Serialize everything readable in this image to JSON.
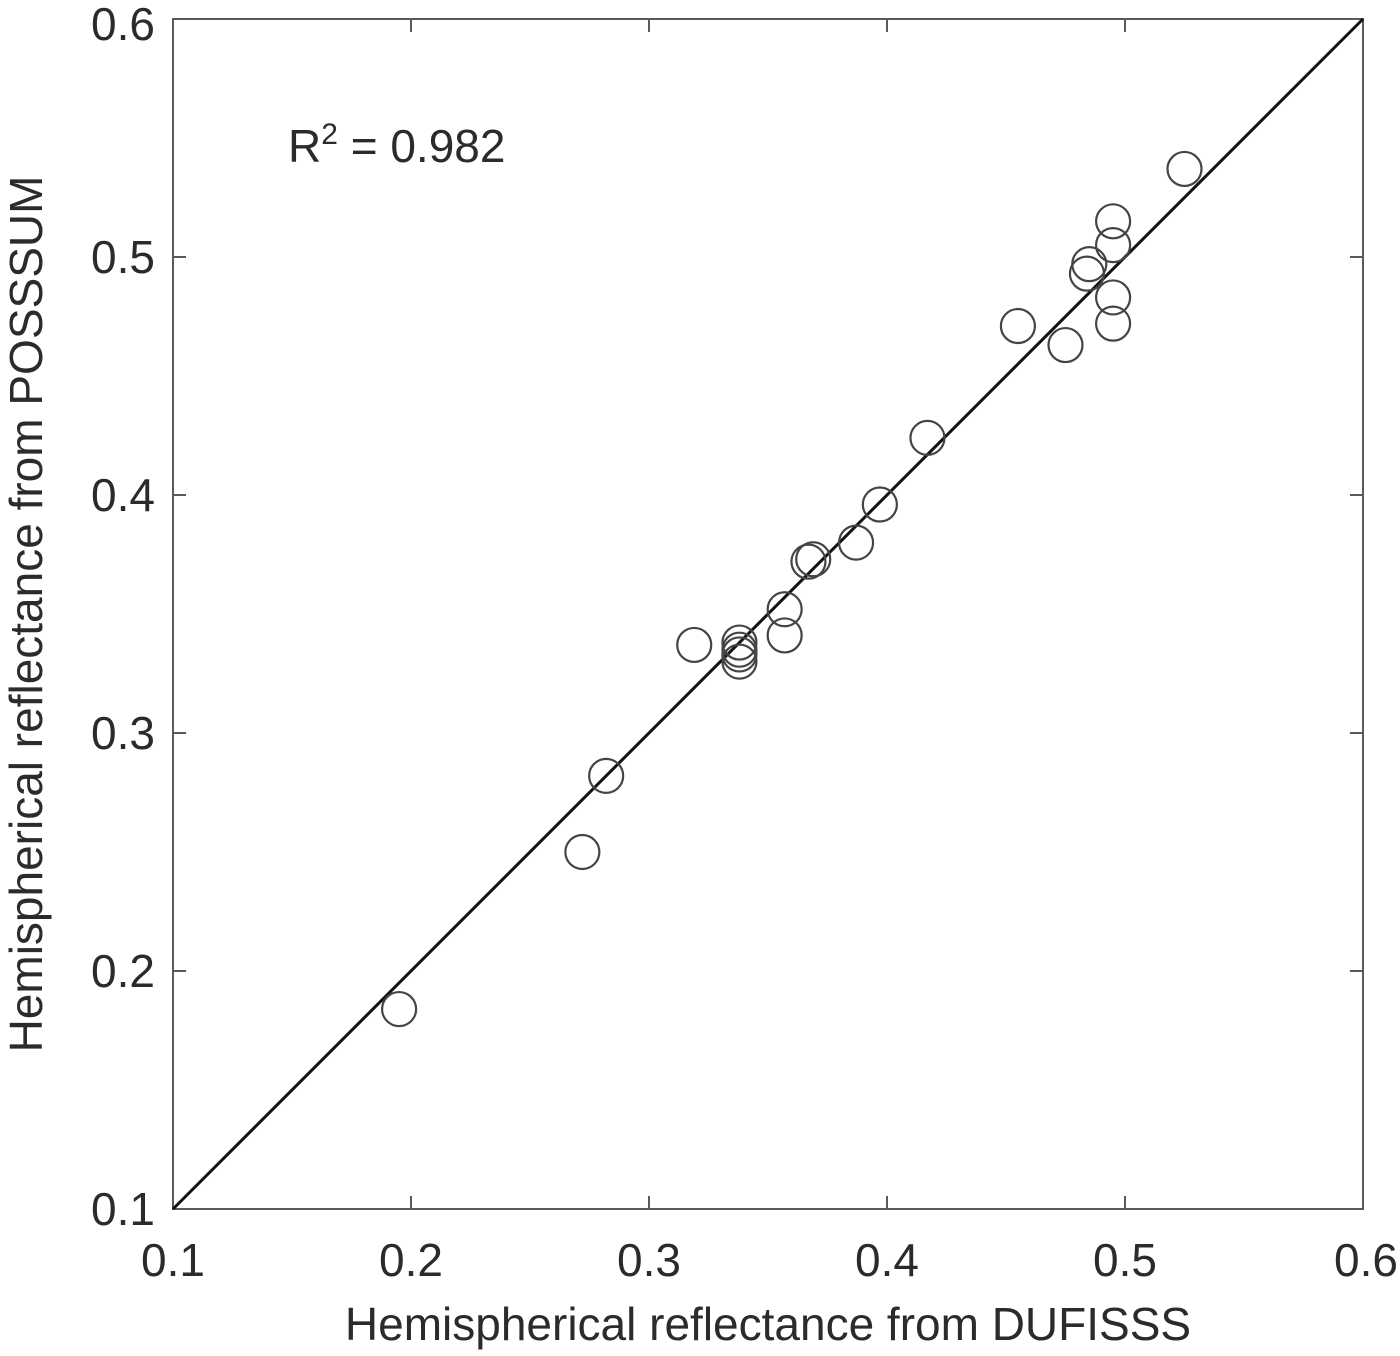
{
  "chart_data": {
    "type": "scatter",
    "title": "",
    "xlabel": "Hemispherical reflectance from DUFISSS",
    "ylabel": "Hemispherical reflectance from POSSSUM",
    "xlim": [
      0.1,
      0.6
    ],
    "ylim": [
      0.1,
      0.6
    ],
    "xticks": [
      "0.1",
      "0.2",
      "0.3",
      "0.4",
      "0.5",
      "0.6"
    ],
    "yticks": [
      "0.1",
      "0.2",
      "0.3",
      "0.4",
      "0.5",
      "0.6"
    ],
    "grid": false,
    "marker": "open-circle",
    "reference_line": {
      "type": "1:1",
      "from": [
        0.1,
        0.1
      ],
      "to": [
        0.6,
        0.6
      ]
    },
    "annotation": {
      "base": "R",
      "sup": "2",
      "rest": " = 0.982"
    },
    "points": [
      {
        "x": 0.195,
        "y": 0.184
      },
      {
        "x": 0.272,
        "y": 0.25
      },
      {
        "x": 0.282,
        "y": 0.282
      },
      {
        "x": 0.319,
        "y": 0.337
      },
      {
        "x": 0.338,
        "y": 0.33
      },
      {
        "x": 0.338,
        "y": 0.333
      },
      {
        "x": 0.338,
        "y": 0.335
      },
      {
        "x": 0.338,
        "y": 0.338
      },
      {
        "x": 0.357,
        "y": 0.341
      },
      {
        "x": 0.357,
        "y": 0.352
      },
      {
        "x": 0.367,
        "y": 0.372
      },
      {
        "x": 0.369,
        "y": 0.373
      },
      {
        "x": 0.387,
        "y": 0.38
      },
      {
        "x": 0.397,
        "y": 0.396
      },
      {
        "x": 0.417,
        "y": 0.424
      },
      {
        "x": 0.455,
        "y": 0.471
      },
      {
        "x": 0.475,
        "y": 0.463
      },
      {
        "x": 0.484,
        "y": 0.493
      },
      {
        "x": 0.485,
        "y": 0.497
      },
      {
        "x": 0.495,
        "y": 0.472
      },
      {
        "x": 0.495,
        "y": 0.483
      },
      {
        "x": 0.495,
        "y": 0.505
      },
      {
        "x": 0.495,
        "y": 0.515
      },
      {
        "x": 0.525,
        "y": 0.537
      }
    ]
  },
  "colors": {
    "axis": "#5a5a5a",
    "marker": "#444444",
    "line": "#111111",
    "text": "#2b2b2b"
  }
}
